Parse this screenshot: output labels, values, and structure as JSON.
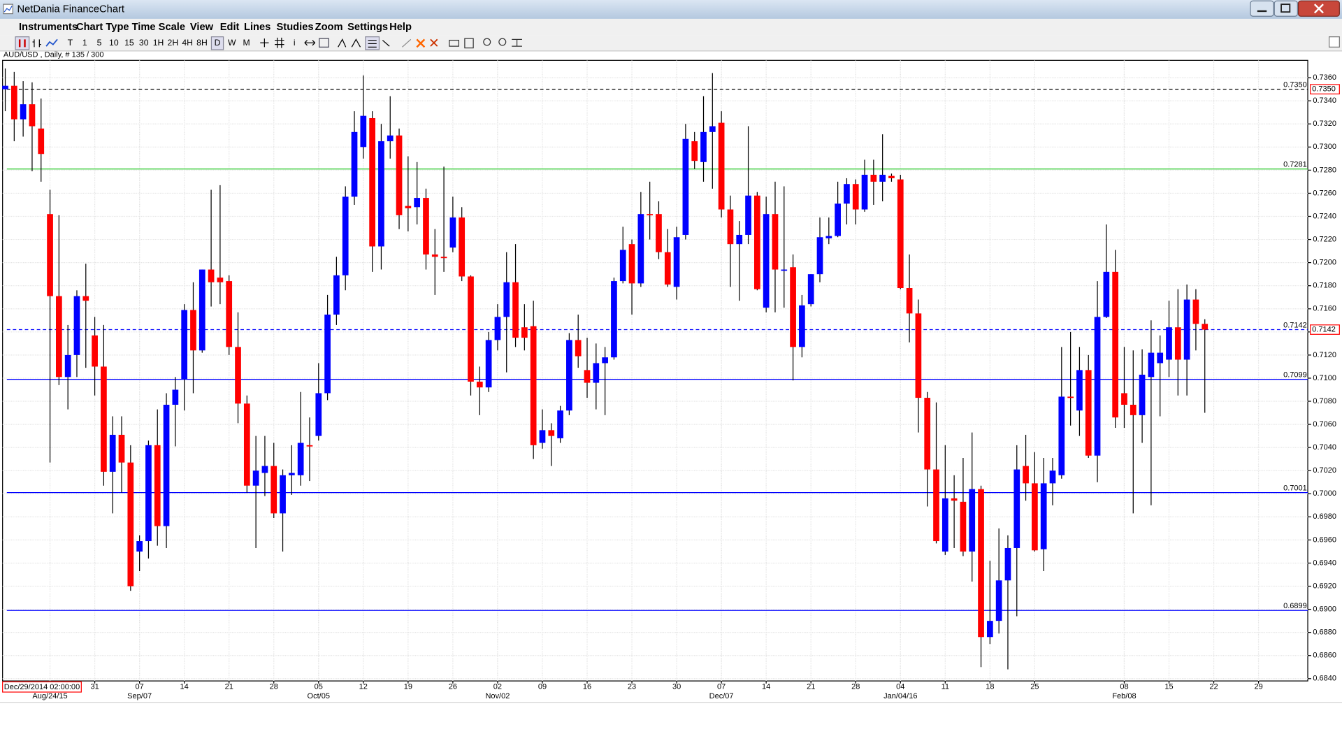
{
  "window": {
    "title": "NetDania FinanceChart",
    "menu": [
      "Instruments",
      "Chart Type",
      "Time Scale",
      "View",
      "Edit",
      "Lines",
      "Studies",
      "Zoom",
      "Settings",
      "Help"
    ],
    "toolbar": [
      "T",
      "1",
      "5",
      "10",
      "15",
      "30",
      "1H",
      "2H",
      "4H",
      "8H",
      "D",
      "W",
      "M",
      "i"
    ]
  },
  "chart_data": {
    "type": "candlestick",
    "symbol_label": "AUD/USD , Daily, # 135 / 300",
    "cursor_label": "Dec/29/2014 02:00:00",
    "up_color": "#0000ff",
    "down_color": "#ff0000",
    "grid": true,
    "open": [
      0.735,
      0.7353,
      0.7324,
      0.7337,
      0.7316,
      0.7242,
      0.7171,
      0.7101,
      0.712,
      0.7171,
      0.7137,
      0.711,
      0.7019,
      0.7051,
      0.7027,
      0.695,
      0.6959,
      0.7042,
      0.6972,
      0.7077,
      0.7099,
      0.7159,
      0.7124,
      0.7194,
      0.7187,
      0.7184,
      0.7127,
      0.7078,
      0.7007,
      0.7018,
      0.7024,
      0.6983,
      0.7016,
      0.7016,
      0.7042,
      0.705,
      0.7087,
      0.7155,
      0.7189,
      0.7257,
      0.73,
      0.7325,
      0.7214,
      0.7305,
      0.731,
      0.7249,
      0.7248,
      0.7256,
      0.7207,
      0.7205,
      0.7213,
      0.7239,
      0.7188,
      0.7097,
      0.7092,
      0.7133,
      0.7153,
      0.7183,
      0.7144,
      0.7145,
      0.7044,
      0.7055,
      0.7048,
      0.7072,
      0.7133,
      0.7107,
      0.7096,
      0.7113,
      0.7118,
      0.7184,
      0.7216,
      0.7182,
      0.7242,
      0.7242,
      0.7209,
      0.7179,
      0.7224,
      0.7305,
      0.7287,
      0.7313,
      0.7321,
      0.7246,
      0.7216,
      0.7224,
      0.7258,
      0.7161,
      0.7242,
      0.7193,
      0.7196,
      0.7127,
      0.7164,
      0.719,
      0.7221,
      0.7223,
      0.7251,
      0.7268,
      0.7246,
      0.7276,
      0.727,
      0.7275,
      0.7272,
      0.7178,
      0.7156,
      0.7083,
      0.7021,
      0.695,
      0.6996,
      0.6993,
      0.695,
      0.7004,
      0.6876,
      0.689,
      0.6925,
      0.6953,
      0.7024,
      0.7009,
      0.6952,
      0.7009,
      0.7016,
      0.7084,
      0.7072,
      0.7107,
      0.7033,
      0.7153,
      0.7192,
      0.7087,
      0.7077,
      0.7068,
      0.7101,
      0.7113,
      0.7116,
      0.7144,
      0.7116,
      0.7168,
      0.7147
    ],
    "high": [
      0.7368,
      0.7365,
      0.7357,
      0.7356,
      0.7342,
      0.7263,
      0.7241,
      0.7146,
      0.7176,
      0.7199,
      0.7153,
      0.7146,
      0.7067,
      0.7067,
      0.7042,
      0.6964,
      0.7046,
      0.7073,
      0.7087,
      0.7101,
      0.7164,
      0.7183,
      0.7194,
      0.7263,
      0.7267,
      0.7189,
      0.7157,
      0.7085,
      0.705,
      0.705,
      0.7044,
      0.7021,
      0.7042,
      0.7088,
      0.7066,
      0.7113,
      0.7172,
      0.7205,
      0.7266,
      0.7331,
      0.7362,
      0.7331,
      0.732,
      0.7344,
      0.7316,
      0.7292,
      0.7287,
      0.7264,
      0.7229,
      0.7283,
      0.7257,
      0.7248,
      0.7189,
      0.711,
      0.714,
      0.7164,
      0.7209,
      0.7216,
      0.7164,
      0.7167,
      0.7073,
      0.7061,
      0.7076,
      0.7139,
      0.7155,
      0.7135,
      0.713,
      0.7127,
      0.7187,
      0.7231,
      0.722,
      0.7261,
      0.727,
      0.7253,
      0.7229,
      0.7231,
      0.732,
      0.7313,
      0.7344,
      0.7364,
      0.7331,
      0.7258,
      0.7236,
      0.7318,
      0.7261,
      0.7257,
      0.727,
      0.7266,
      0.7207,
      0.7172,
      0.719,
      0.7239,
      0.7239,
      0.727,
      0.7273,
      0.7272,
      0.7289,
      0.7289,
      0.7311,
      0.7277,
      0.7276,
      0.7207,
      0.7168,
      0.7088,
      0.7079,
      0.7042,
      0.7016,
      0.7031,
      0.7053,
      0.7007,
      0.6942,
      0.697,
      0.6964,
      0.7042,
      0.7051,
      0.7036,
      0.7031,
      0.7031,
      0.7127,
      0.714,
      0.7127,
      0.712,
      0.7184,
      0.7233,
      0.7211,
      0.7127,
      0.7124,
      0.7125,
      0.715,
      0.7137,
      0.7167,
      0.7177,
      0.7181,
      0.7177,
      0.7151
    ],
    "low": [
      0.7331,
      0.7305,
      0.7309,
      0.7279,
      0.727,
      0.7027,
      0.7094,
      0.7073,
      0.7101,
      0.7109,
      0.7085,
      0.7007,
      0.6983,
      0.7001,
      0.6916,
      0.6933,
      0.6944,
      0.6955,
      0.6953,
      0.7041,
      0.7072,
      0.7087,
      0.7122,
      0.7162,
      0.7164,
      0.712,
      0.7061,
      0.7001,
      0.6953,
      0.6998,
      0.6979,
      0.695,
      0.6999,
      0.7007,
      0.7011,
      0.7046,
      0.7081,
      0.7146,
      0.7176,
      0.725,
      0.729,
      0.7192,
      0.7194,
      0.729,
      0.7229,
      0.7227,
      0.7233,
      0.7194,
      0.7172,
      0.7192,
      0.7209,
      0.7184,
      0.7085,
      0.7068,
      0.7088,
      0.7124,
      0.7105,
      0.7127,
      0.7124,
      0.703,
      0.7039,
      0.7024,
      0.7044,
      0.7068,
      0.7109,
      0.7083,
      0.7073,
      0.7068,
      0.7116,
      0.7182,
      0.7155,
      0.7179,
      0.722,
      0.7203,
      0.7179,
      0.7168,
      0.722,
      0.7281,
      0.727,
      0.7264,
      0.7239,
      0.7179,
      0.7167,
      0.7216,
      0.7176,
      0.7157,
      0.7157,
      0.7161,
      0.7098,
      0.7118,
      0.7162,
      0.7183,
      0.7216,
      0.7222,
      0.7233,
      0.7233,
      0.7244,
      0.725,
      0.7253,
      0.727,
      0.7177,
      0.7131,
      0.7053,
      0.6989,
      0.6957,
      0.6947,
      0.6953,
      0.6946,
      0.6924,
      0.685,
      0.687,
      0.6879,
      0.6848,
      0.6894,
      0.6994,
      0.695,
      0.6933,
      0.699,
      0.7013,
      0.7059,
      0.705,
      0.7031,
      0.701,
      0.7152,
      0.7057,
      0.7057,
      0.6983,
      0.7044,
      0.699,
      0.7067,
      0.7101,
      0.7085,
      0.7085,
      0.7124,
      0.707
    ],
    "close": [
      0.7353,
      0.7324,
      0.7337,
      0.7318,
      0.7294,
      0.7171,
      0.7101,
      0.712,
      0.7171,
      0.7167,
      0.711,
      0.7019,
      0.7051,
      0.7027,
      0.692,
      0.6959,
      0.7042,
      0.6972,
      0.7077,
      0.709,
      0.7159,
      0.7124,
      0.7194,
      0.7183,
      0.7183,
      0.7127,
      0.7078,
      0.7007,
      0.702,
      0.7024,
      0.6983,
      0.7016,
      0.7018,
      0.7044,
      0.7041,
      0.7087,
      0.7155,
      0.7189,
      0.7257,
      0.7313,
      0.7327,
      0.7214,
      0.7305,
      0.731,
      0.7241,
      0.7247,
      0.7256,
      0.7207,
      0.7205,
      0.7204,
      0.7239,
      0.7188,
      0.7097,
      0.7092,
      0.7133,
      0.7153,
      0.7183,
      0.7135,
      0.7135,
      0.7042,
      0.7055,
      0.705,
      0.7072,
      0.7133,
      0.7119,
      0.7096,
      0.7113,
      0.7118,
      0.7184,
      0.7211,
      0.7182,
      0.7242,
      0.7241,
      0.7209,
      0.7181,
      0.7222,
      0.7307,
      0.7288,
      0.7313,
      0.7318,
      0.7246,
      0.7216,
      0.7224,
      0.7258,
      0.7177,
      0.7242,
      0.7194,
      0.7194,
      0.7127,
      0.7163,
      0.719,
      0.7222,
      0.7223,
      0.7251,
      0.7268,
      0.7246,
      0.7276,
      0.727,
      0.7276,
      0.7273,
      0.7178,
      0.7156,
      0.7083,
      0.7021,
      0.6959,
      0.6996,
      0.6994,
      0.695,
      0.7004,
      0.6876,
      0.689,
      0.6925,
      0.6953,
      0.7021,
      0.7009,
      0.6951,
      0.7009,
      0.702,
      0.7084,
      0.7083,
      0.7107,
      0.7033,
      0.7153,
      0.7192,
      0.7066,
      0.7077,
      0.7068,
      0.7103,
      0.7122,
      0.7122,
      0.7144,
      0.7116,
      0.7168,
      0.7147,
      0.7142
    ],
    "xlim": [
      -0.3,
      145.5
    ],
    "xticks": [
      {
        "value": 10,
        "label": "31"
      },
      {
        "value": 15,
        "label": "07"
      },
      {
        "value": 20,
        "label": "14"
      },
      {
        "value": 25,
        "label": "21"
      },
      {
        "value": 30,
        "label": "28"
      },
      {
        "value": 35,
        "label": "05"
      },
      {
        "value": 40,
        "label": "12"
      },
      {
        "value": 45,
        "label": "19"
      },
      {
        "value": 50,
        "label": "26"
      },
      {
        "value": 55,
        "label": "02"
      },
      {
        "value": 60,
        "label": "09"
      },
      {
        "value": 65,
        "label": "16"
      },
      {
        "value": 70,
        "label": "23"
      },
      {
        "value": 75,
        "label": "30"
      },
      {
        "value": 80,
        "label": "07"
      },
      {
        "value": 85,
        "label": "14"
      },
      {
        "value": 90,
        "label": "21"
      },
      {
        "value": 95,
        "label": "28"
      },
      {
        "value": 100,
        "label": "04"
      },
      {
        "value": 105,
        "label": "11"
      },
      {
        "value": 110,
        "label": "18"
      },
      {
        "value": 115,
        "label": "25"
      },
      {
        "value": 125,
        "label": "08"
      },
      {
        "value": 130,
        "label": "15"
      },
      {
        "value": 135,
        "label": "22"
      },
      {
        "value": 140,
        "label": "29"
      }
    ],
    "xticks_major": [
      {
        "value": 5,
        "label": "Aug/24/15"
      },
      {
        "value": 15,
        "label": "Sep/07"
      },
      {
        "value": 35,
        "label": "Oct/05"
      },
      {
        "value": 55,
        "label": "Nov/02"
      },
      {
        "value": 80,
        "label": "Dec/07"
      },
      {
        "value": 100,
        "label": "Jan/04/16"
      },
      {
        "value": 125,
        "label": "Feb/08"
      }
    ],
    "ylim": [
      0.6838,
      0.7375
    ],
    "yticks": [
      {
        "value": 0.684,
        "label": "0.6840"
      },
      {
        "value": 0.686,
        "label": "0.6860"
      },
      {
        "value": 0.688,
        "label": "0.6880"
      },
      {
        "value": 0.69,
        "label": "0.6900"
      },
      {
        "value": 0.692,
        "label": "0.6920"
      },
      {
        "value": 0.694,
        "label": "0.6940"
      },
      {
        "value": 0.696,
        "label": "0.6960"
      },
      {
        "value": 0.698,
        "label": "0.6980"
      },
      {
        "value": 0.7,
        "label": "0.7000"
      },
      {
        "value": 0.702,
        "label": "0.7020"
      },
      {
        "value": 0.704,
        "label": "0.7040"
      },
      {
        "value": 0.706,
        "label": "0.7060"
      },
      {
        "value": 0.708,
        "label": "0.7080"
      },
      {
        "value": 0.71,
        "label": "0.7100"
      },
      {
        "value": 0.712,
        "label": "0.7120"
      },
      {
        "value": 0.714,
        "label": "0.7140"
      },
      {
        "value": 0.716,
        "label": "0.7160"
      },
      {
        "value": 0.718,
        "label": "0.7180"
      },
      {
        "value": 0.72,
        "label": "0.7200"
      },
      {
        "value": 0.722,
        "label": "0.7220"
      },
      {
        "value": 0.724,
        "label": "0.7240"
      },
      {
        "value": 0.726,
        "label": "0.7260"
      },
      {
        "value": 0.728,
        "label": "0.7280"
      },
      {
        "value": 0.73,
        "label": "0.7300"
      },
      {
        "value": 0.732,
        "label": "0.7320"
      },
      {
        "value": 0.734,
        "label": "0.7340"
      },
      {
        "value": 0.736,
        "label": "0.7360"
      }
    ],
    "levels": [
      {
        "value": 0.735,
        "label": "0.7350",
        "color": "#000000",
        "dashed": true,
        "tag": true
      },
      {
        "value": 0.7281,
        "label": "0.7281",
        "color": "#33cc33",
        "dashed": false,
        "tag": false
      },
      {
        "value": 0.7142,
        "label": "0.7142",
        "color": "#0000ff",
        "dashed": true,
        "tag": true
      },
      {
        "value": 0.7099,
        "label": "0.7099",
        "color": "#0000ff",
        "dashed": false,
        "tag": false
      },
      {
        "value": 0.7001,
        "label": "0.7001",
        "color": "#0000ff",
        "dashed": false,
        "tag": false
      },
      {
        "value": 0.6899,
        "label": "0.6899",
        "color": "#0000ff",
        "dashed": false,
        "tag": false
      }
    ]
  }
}
